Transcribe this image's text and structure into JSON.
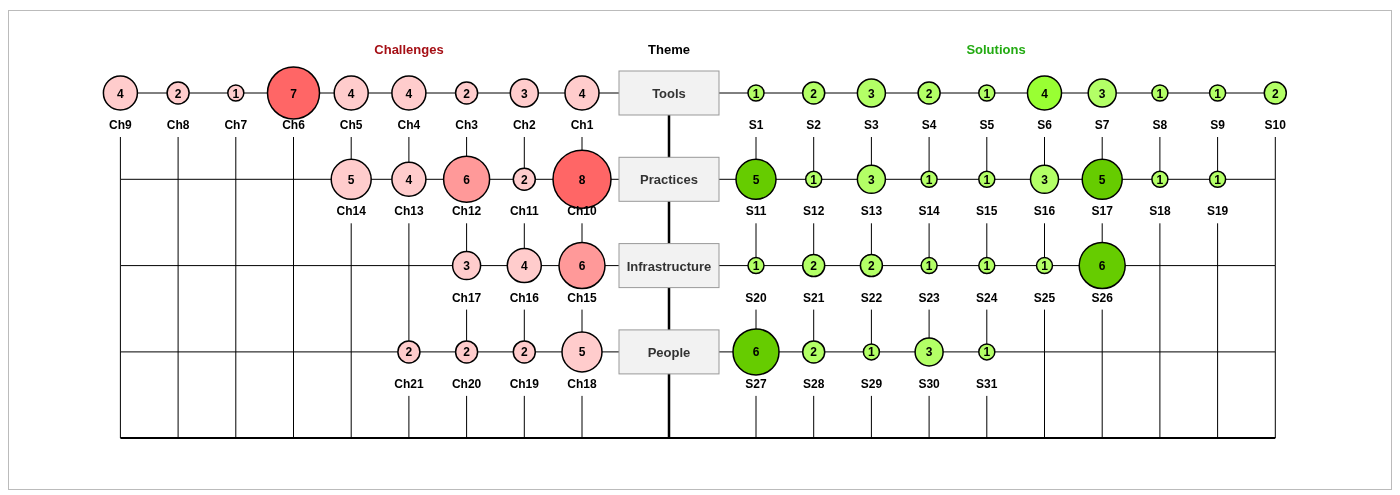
{
  "chart_data": [
    {
      "type": "other",
      "title": "Challenges",
      "ylabel": "Theme",
      "data_labels": true,
      "categories": [
        "Ch1",
        "Ch2",
        "Ch3",
        "Ch4",
        "Ch5",
        "Ch6",
        "Ch7",
        "Ch8",
        "Ch9",
        "Ch10",
        "Ch11",
        "Ch12",
        "Ch13",
        "Ch14",
        "Ch15",
        "Ch16",
        "Ch17",
        "Ch18",
        "Ch19",
        "Ch20",
        "Ch21"
      ],
      "y_categories": [
        "Tools",
        "Practices",
        "Infrastructure",
        "People"
      ],
      "series": [
        {
          "values": [
            4,
            3,
            2,
            4,
            4,
            7,
            1,
            2,
            4,
            null,
            null,
            null,
            null,
            null,
            null,
            null,
            null,
            null,
            null,
            null,
            null
          ],
          "colors": [
            "#ffcccc",
            "#ffcccc",
            "#ffcccc",
            "#ffcccc",
            "#ffcccc",
            "#ff6666",
            "#ffcccc",
            "#ffcccc",
            "#ffcccc",
            null,
            null,
            null,
            null,
            null,
            null,
            null,
            null,
            null,
            null,
            null,
            null
          ]
        },
        {
          "values": [
            null,
            null,
            null,
            null,
            null,
            null,
            null,
            null,
            null,
            8,
            2,
            6,
            4,
            5,
            null,
            null,
            null,
            null,
            null,
            null,
            null
          ],
          "colors": [
            null,
            null,
            null,
            null,
            null,
            null,
            null,
            null,
            null,
            "#ff6666",
            "#ffcccc",
            "#ff9999",
            "#ffcccc",
            "#ffcccc",
            null,
            null,
            null,
            null,
            null,
            null,
            null
          ]
        },
        {
          "values": [
            null,
            null,
            null,
            null,
            null,
            null,
            null,
            null,
            null,
            null,
            null,
            null,
            null,
            null,
            6,
            4,
            3,
            null,
            null,
            null,
            null
          ],
          "colors": [
            null,
            null,
            null,
            null,
            null,
            null,
            null,
            null,
            null,
            null,
            null,
            null,
            null,
            null,
            "#ff9999",
            "#ffcccc",
            "#ffcccc",
            null,
            null,
            null,
            null
          ]
        },
        {
          "values": [
            null,
            null,
            null,
            null,
            null,
            null,
            null,
            null,
            null,
            null,
            null,
            null,
            null,
            null,
            null,
            null,
            null,
            5,
            2,
            2,
            2
          ],
          "colors": [
            null,
            null,
            null,
            null,
            null,
            null,
            null,
            null,
            null,
            null,
            null,
            null,
            null,
            null,
            null,
            null,
            null,
            "#ffcccc",
            "#ffcccc",
            "#ffcccc",
            "#ffcccc"
          ]
        }
      ]
    },
    {
      "type": "other",
      "title": "Solutions",
      "data_labels": true,
      "categories": [
        "S1",
        "S2",
        "S3",
        "S4",
        "S5",
        "S6",
        "S7",
        "S8",
        "S9",
        "S10",
        "S11",
        "S12",
        "S13",
        "S14",
        "S15",
        "S16",
        "S17",
        "S18",
        "S19",
        "S20",
        "S21",
        "S22",
        "S23",
        "S24",
        "S25",
        "S26",
        "S27",
        "S28",
        "S29",
        "S30",
        "S31"
      ],
      "series": [
        {
          "values": [
            1,
            2,
            3,
            2,
            1,
            4,
            3,
            1,
            1,
            2,
            null,
            null,
            null,
            null,
            null,
            null,
            null,
            null,
            null,
            null,
            null,
            null,
            null,
            null,
            null,
            null,
            null,
            null,
            null,
            null,
            null
          ],
          "colors": [
            "#b3ff66",
            "#b3ff66",
            "#b3ff66",
            "#b3ff66",
            "#b3ff66",
            "#99ff33",
            "#b3ff66",
            "#b3ff66",
            "#b3ff66",
            "#b3ff66",
            null,
            null,
            null,
            null,
            null,
            null,
            null,
            null,
            null,
            null,
            null,
            null,
            null,
            null,
            null,
            null,
            null,
            null,
            null,
            null,
            null
          ]
        },
        {
          "values": [
            null,
            null,
            null,
            null,
            null,
            null,
            null,
            null,
            null,
            null,
            5,
            1,
            3,
            1,
            1,
            3,
            5,
            1,
            1,
            null,
            null,
            null,
            null,
            null,
            null,
            null,
            null,
            null,
            null,
            null,
            null
          ],
          "colors": [
            null,
            null,
            null,
            null,
            null,
            null,
            null,
            null,
            null,
            null,
            "#66cc00",
            "#b3ff66",
            "#b3ff66",
            "#b3ff66",
            "#b3ff66",
            "#b3ff66",
            "#66cc00",
            "#b3ff66",
            "#b3ff66",
            null,
            null,
            null,
            null,
            null,
            null,
            null,
            null,
            null,
            null,
            null,
            null
          ]
        },
        {
          "values": [
            null,
            null,
            null,
            null,
            null,
            null,
            null,
            null,
            null,
            null,
            null,
            null,
            null,
            null,
            null,
            null,
            null,
            null,
            null,
            1,
            2,
            2,
            1,
            1,
            1,
            6,
            null,
            null,
            null,
            null,
            null
          ],
          "colors": [
            null,
            null,
            null,
            null,
            null,
            null,
            null,
            null,
            null,
            null,
            null,
            null,
            null,
            null,
            null,
            null,
            null,
            null,
            null,
            "#b3ff66",
            "#b3ff66",
            "#b3ff66",
            "#b3ff66",
            "#b3ff66",
            "#b3ff66",
            "#66cc00",
            null,
            null,
            null,
            null,
            null
          ]
        },
        {
          "values": [
            null,
            null,
            null,
            null,
            null,
            null,
            null,
            null,
            null,
            null,
            null,
            null,
            null,
            null,
            null,
            null,
            null,
            null,
            null,
            null,
            null,
            null,
            null,
            null,
            null,
            null,
            6,
            2,
            1,
            3,
            1
          ],
          "colors": [
            null,
            null,
            null,
            null,
            null,
            null,
            null,
            null,
            null,
            null,
            null,
            null,
            null,
            null,
            null,
            null,
            null,
            null,
            null,
            null,
            null,
            null,
            null,
            null,
            null,
            null,
            "#66cc00",
            "#b3ff66",
            "#b3ff66",
            "#b3ff66",
            "#b3ff66"
          ]
        }
      ]
    }
  ]
}
